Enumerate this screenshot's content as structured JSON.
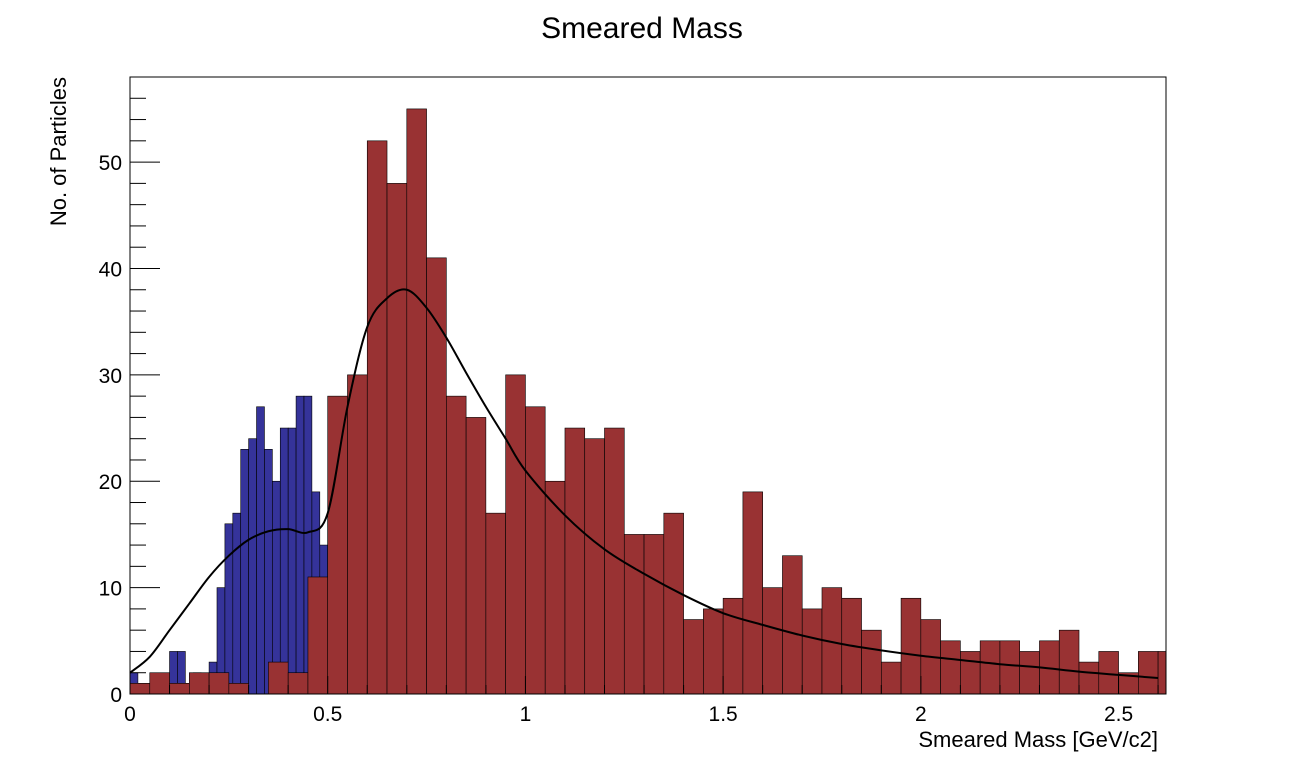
{
  "chart_data": {
    "type": "bar",
    "title": "Smeared Mass",
    "xlabel": "Smeared Mass [GeV/c2]",
    "ylabel": "No. of Particles",
    "xlim": [
      0,
      2.62
    ],
    "ylim": [
      0,
      58
    ],
    "x_ticks": [
      "0",
      "0.5",
      "1",
      "1.5",
      "2",
      "2.5"
    ],
    "y_ticks": [
      "0",
      "10",
      "20",
      "30",
      "40",
      "50"
    ],
    "grid": false,
    "legend": false,
    "colors": {
      "blue": "#35339a",
      "red": "#993233",
      "fit": "#000000"
    },
    "series": [
      {
        "type": "histogram",
        "color": "#35339a",
        "bin_width": 0.02,
        "x_start": 0,
        "values": [
          2,
          1,
          1,
          0,
          1,
          4,
          4,
          1,
          2,
          1,
          3,
          10,
          16,
          17,
          23,
          24,
          27,
          23,
          20,
          25,
          25,
          28,
          28,
          19,
          14,
          17,
          16,
          17,
          14,
          15,
          12,
          10,
          15,
          16,
          15,
          19,
          15,
          14,
          7,
          12,
          16,
          16,
          15,
          15
        ]
      },
      {
        "type": "histogram",
        "color": "#993233",
        "bin_width": 0.05,
        "x_start": 0,
        "values": [
          1,
          2,
          1,
          2,
          2,
          1,
          0,
          3,
          2,
          11,
          28,
          30,
          52,
          48,
          55,
          41,
          28,
          26,
          17,
          30,
          27,
          20,
          25,
          24,
          25,
          15,
          15,
          17,
          7,
          8,
          9,
          19,
          10,
          13,
          8,
          10,
          9,
          6,
          3,
          9,
          7,
          5,
          4,
          5,
          5,
          4,
          5,
          6,
          3,
          4,
          2,
          4,
          4,
          3,
          3,
          1,
          2,
          3
        ]
      },
      {
        "type": "line",
        "name": "",
        "color": "#000000",
        "x": [
          0,
          0.05,
          0.1,
          0.15,
          0.2,
          0.25,
          0.3,
          0.35,
          0.4,
          0.45,
          0.5,
          0.55,
          0.6,
          0.65,
          0.7,
          0.75,
          0.8,
          0.85,
          0.9,
          0.95,
          1.0,
          1.1,
          1.2,
          1.3,
          1.4,
          1.5,
          1.6,
          1.7,
          1.8,
          1.9,
          2.0,
          2.1,
          2.2,
          2.3,
          2.4,
          2.5,
          2.6
        ],
        "y": [
          2,
          3.5,
          6,
          8.5,
          11,
          13,
          14.5,
          15.3,
          15.5,
          15.2,
          17,
          27,
          34.5,
          37.2,
          38,
          36.3,
          33.5,
          30.2,
          27,
          24,
          21,
          16.8,
          13.6,
          11.3,
          9.3,
          7.6,
          6.5,
          5.5,
          4.7,
          4.1,
          3.6,
          3.2,
          2.8,
          2.5,
          2.1,
          1.8,
          1.5
        ]
      }
    ]
  }
}
